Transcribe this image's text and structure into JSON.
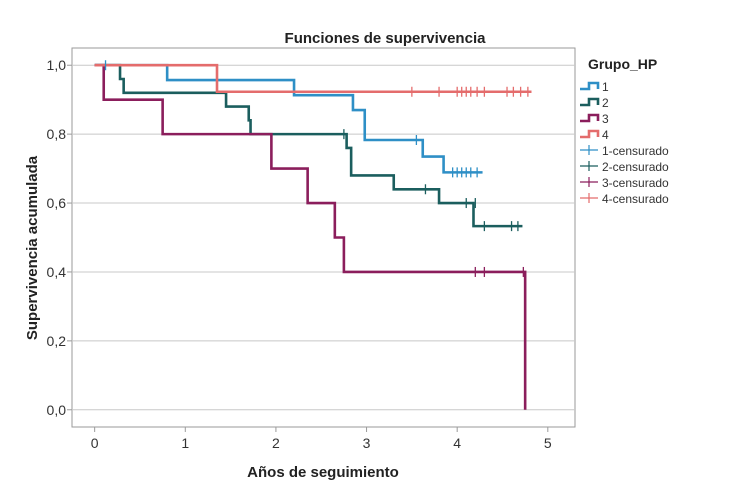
{
  "chart_data": {
    "type": "line",
    "title": "Funciones de supervivencia",
    "xlabel": "Años de seguimiento",
    "ylabel": "Supervivencia acumulada",
    "xlim": [
      -0.25,
      5.3
    ],
    "ylim": [
      -0.05,
      1.05
    ],
    "xticks": [
      0,
      1,
      2,
      3,
      4,
      5
    ],
    "xtick_labels": [
      "0",
      "1",
      "2",
      "3",
      "4",
      "5"
    ],
    "yticks": [
      0,
      0.2,
      0.4,
      0.6,
      0.8,
      1.0
    ],
    "ytick_labels": [
      "0,0",
      "0,2",
      "0,4",
      "0,6",
      "0,8",
      "1,0"
    ],
    "grid": "horizontal",
    "legend": {
      "title": "Grupo_HP",
      "placement": "right",
      "entries": [
        "1",
        "2",
        "3",
        "4",
        "1-censurado",
        "2-censurado",
        "3-censurado",
        "4-censurado"
      ]
    },
    "series": [
      {
        "name": "1",
        "color": "#2e8fc6",
        "steps": [
          [
            0,
            1.0
          ],
          [
            0.8,
            0.957
          ],
          [
            2.2,
            0.913
          ],
          [
            2.85,
            0.87
          ],
          [
            2.98,
            0.783
          ],
          [
            3.62,
            0.735
          ],
          [
            3.85,
            0.689
          ],
          [
            4.28,
            0.689
          ]
        ],
        "censored": [
          [
            0.12,
            1.0
          ],
          [
            3.55,
            0.783
          ],
          [
            3.95,
            0.689
          ],
          [
            4.0,
            0.689
          ],
          [
            4.05,
            0.689
          ],
          [
            4.1,
            0.689
          ],
          [
            4.15,
            0.689
          ],
          [
            4.22,
            0.689
          ]
        ]
      },
      {
        "name": "2",
        "color": "#1b5e5e",
        "steps": [
          [
            0,
            1.0
          ],
          [
            0.28,
            0.96
          ],
          [
            0.32,
            0.92
          ],
          [
            1.45,
            0.88
          ],
          [
            1.7,
            0.84
          ],
          [
            1.72,
            0.8
          ],
          [
            2.78,
            0.76
          ],
          [
            2.83,
            0.68
          ],
          [
            3.3,
            0.64
          ],
          [
            3.8,
            0.6
          ],
          [
            4.18,
            0.533
          ],
          [
            4.72,
            0.533
          ]
        ],
        "censored": [
          [
            2.75,
            0.8
          ],
          [
            3.65,
            0.64
          ],
          [
            4.1,
            0.6
          ],
          [
            4.2,
            0.6
          ],
          [
            4.3,
            0.533
          ],
          [
            4.6,
            0.533
          ],
          [
            4.67,
            0.533
          ]
        ]
      },
      {
        "name": "3",
        "color": "#8b1e5c",
        "steps": [
          [
            0,
            1.0
          ],
          [
            0.1,
            0.9
          ],
          [
            0.75,
            0.8
          ],
          [
            1.95,
            0.7
          ],
          [
            2.35,
            0.6
          ],
          [
            2.65,
            0.5
          ],
          [
            2.75,
            0.4
          ],
          [
            4.75,
            0.0
          ]
        ],
        "censored": [
          [
            4.2,
            0.4
          ],
          [
            4.3,
            0.4
          ],
          [
            4.73,
            0.4
          ]
        ]
      },
      {
        "name": "4",
        "color": "#e46c6c",
        "steps": [
          [
            0,
            1.0
          ],
          [
            1.35,
            0.923
          ],
          [
            4.82,
            0.923
          ]
        ],
        "censored": [
          [
            3.5,
            0.923
          ],
          [
            3.8,
            0.923
          ],
          [
            4.0,
            0.923
          ],
          [
            4.05,
            0.923
          ],
          [
            4.1,
            0.923
          ],
          [
            4.15,
            0.923
          ],
          [
            4.22,
            0.923
          ],
          [
            4.3,
            0.923
          ],
          [
            4.55,
            0.923
          ],
          [
            4.62,
            0.923
          ],
          [
            4.7,
            0.923
          ],
          [
            4.78,
            0.923
          ]
        ]
      }
    ]
  }
}
